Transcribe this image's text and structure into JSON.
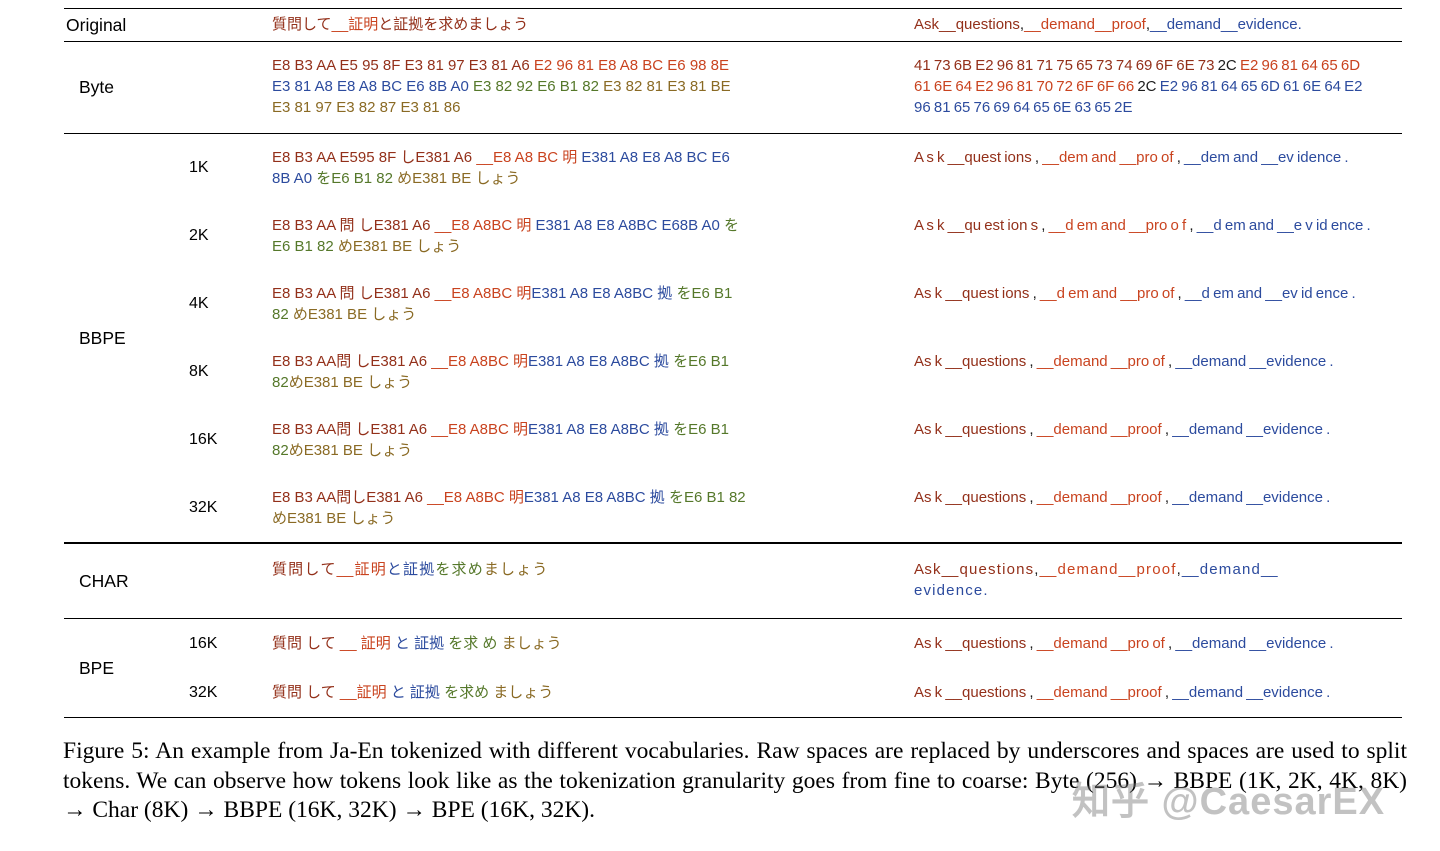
{
  "palette": {
    "dr": "#93301a",
    "rd": "#c9431f",
    "bl": "#2c4b9e",
    "gr": "#55782a",
    "ol": "#8a6a24",
    "bk": "#1c1c1c"
  },
  "sections": [
    {
      "name": "original",
      "group": "Original",
      "rows": [
        {
          "size": "",
          "ja": [
            [
              {
                "t": "質問して",
                "c": "dr"
              },
              {
                "t": "__証明",
                "c": "rd"
              },
              {
                "t": "と証拠を求めましょう",
                "c": "dr"
              }
            ]
          ],
          "en": [
            [
              {
                "t": "Ask__questions",
                "c": "dr"
              },
              {
                "t": ",",
                "c": "bk"
              },
              {
                "t": "__demand__proof",
                "c": "rd"
              },
              {
                "t": ",",
                "c": "bk"
              },
              {
                "t": "__demand__evidence.",
                "c": "bl"
              }
            ]
          ]
        }
      ]
    },
    {
      "name": "byte",
      "group": "Byte",
      "rows": [
        {
          "size": "",
          "ja": [
            [
              {
                "t": "E8 B3 AA E5 95 8F E3 81 97 E3 81 A6 ",
                "c": "dr"
              },
              {
                "t": "E2 96 81 E8 A8 BC E6 98 8E",
                "c": "rd"
              }
            ],
            [
              {
                "t": "E3 81 A8 E8 A8 BC E6 8B A0 ",
                "c": "bl"
              },
              {
                "t": "E3 82 92 E6 B1 82 ",
                "c": "gr"
              },
              {
                "t": "E3 82 81 E3 81 BE",
                "c": "ol"
              }
            ],
            [
              {
                "t": "E3 81 97 E3 82 87 E3 81 86",
                "c": "ol"
              }
            ]
          ],
          "en": [
            [
              {
                "t": "41 73 6B E2 96 81 71 75 65 73 74 69 6F 6E 73 ",
                "c": "dr"
              },
              {
                "t": "2C ",
                "c": "bk"
              },
              {
                "t": "E2 96 81 64 65 6D",
                "c": "rd"
              }
            ],
            [
              {
                "t": "61 6E 64 E2 96 81 70 72 6F 6F 66 ",
                "c": "rd"
              },
              {
                "t": "2C ",
                "c": "bk"
              },
              {
                "t": "E2 96 81 64 65 6D 61 6E 64 E2",
                "c": "bl"
              }
            ],
            [
              {
                "t": "96 81 65 76 69 64 65 6E 63 65 2E",
                "c": "bl"
              }
            ]
          ]
        }
      ]
    },
    {
      "name": "bbpe",
      "group": "BBPE",
      "rows": [
        {
          "size": "1K",
          "ja": [
            [
              {
                "t": "E8 B3 AA E595 8F しE381 A6 ",
                "c": "dr"
              },
              {
                "t": "__E8 A8 BC 明 ",
                "c": "rd"
              },
              {
                "t": "E381 A8 E8 A8 BC E6",
                "c": "bl"
              }
            ],
            [
              {
                "t": "8B A0 ",
                "c": "bl"
              },
              {
                "t": "をE6 B1 82 ",
                "c": "gr"
              },
              {
                "t": "めE381 BE しょう",
                "c": "ol"
              }
            ]
          ],
          "en": [
            [
              {
                "t": "A s k __quest ions ",
                "c": "dr"
              },
              {
                "t": ", ",
                "c": "bk"
              },
              {
                "t": "__dem and __pro of ",
                "c": "rd"
              },
              {
                "t": ", ",
                "c": "bk"
              },
              {
                "t": "__dem and __ev idence .",
                "c": "bl"
              }
            ]
          ]
        },
        {
          "size": "2K",
          "ja": [
            [
              {
                "t": "E8 B3 AA 問 しE381 A6 ",
                "c": "dr"
              },
              {
                "t": "__E8 A8BC 明 ",
                "c": "rd"
              },
              {
                "t": "E381 A8 E8 A8BC E68B A0 ",
                "c": "bl"
              },
              {
                "t": "を",
                "c": "gr"
              }
            ],
            [
              {
                "t": "E6 B1 82 ",
                "c": "gr"
              },
              {
                "t": "めE381 BE しょう",
                "c": "ol"
              }
            ]
          ],
          "en": [
            [
              {
                "t": "A s k __qu est ion s ",
                "c": "dr"
              },
              {
                "t": ", ",
                "c": "bk"
              },
              {
                "t": "__d em and __pro o f ",
                "c": "rd"
              },
              {
                "t": ", ",
                "c": "bk"
              },
              {
                "t": "__d em and __e v id ence .",
                "c": "bl"
              }
            ]
          ]
        },
        {
          "size": "4K",
          "ja": [
            [
              {
                "t": "E8 B3 AA 問 しE381 A6 ",
                "c": "dr"
              },
              {
                "t": "__E8 A8BC 明",
                "c": "rd"
              },
              {
                "t": "E381 A8 E8 A8BC 拠 ",
                "c": "bl"
              },
              {
                "t": "をE6 B1",
                "c": "gr"
              }
            ],
            [
              {
                "t": "82 ",
                "c": "gr"
              },
              {
                "t": "めE381 BE しょう",
                "c": "ol"
              }
            ]
          ],
          "en": [
            [
              {
                "t": "As k __quest ions ",
                "c": "dr"
              },
              {
                "t": ", ",
                "c": "bk"
              },
              {
                "t": "__d em and __pro of ",
                "c": "rd"
              },
              {
                "t": ", ",
                "c": "bk"
              },
              {
                "t": "__d em and __ev id ence .",
                "c": "bl"
              }
            ]
          ]
        },
        {
          "size": "8K",
          "ja": [
            [
              {
                "t": "E8 B3 AA問 しE381 A6 ",
                "c": "dr"
              },
              {
                "t": "__E8 A8BC 明",
                "c": "rd"
              },
              {
                "t": "E381 A8 E8 A8BC 拠 ",
                "c": "bl"
              },
              {
                "t": "をE6 B1",
                "c": "gr"
              }
            ],
            [
              {
                "t": "82",
                "c": "gr"
              },
              {
                "t": "めE381 BE しょう",
                "c": "ol"
              }
            ]
          ],
          "en": [
            [
              {
                "t": "As k __questions ",
                "c": "dr"
              },
              {
                "t": ", ",
                "c": "bk"
              },
              {
                "t": "__demand __pro of ",
                "c": "rd"
              },
              {
                "t": ", ",
                "c": "bk"
              },
              {
                "t": "__demand __evidence .",
                "c": "bl"
              }
            ]
          ]
        },
        {
          "size": "16K",
          "ja": [
            [
              {
                "t": "E8 B3 AA問 しE381 A6 ",
                "c": "dr"
              },
              {
                "t": "__E8 A8BC 明",
                "c": "rd"
              },
              {
                "t": "E381 A8 E8 A8BC 拠 ",
                "c": "bl"
              },
              {
                "t": "をE6 B1",
                "c": "gr"
              }
            ],
            [
              {
                "t": "82",
                "c": "gr"
              },
              {
                "t": "めE381 BE しょう",
                "c": "ol"
              }
            ]
          ],
          "en": [
            [
              {
                "t": "As k __questions ",
                "c": "dr"
              },
              {
                "t": ", ",
                "c": "bk"
              },
              {
                "t": "__demand __proof ",
                "c": "rd"
              },
              {
                "t": ", ",
                "c": "bk"
              },
              {
                "t": "__demand __evidence .",
                "c": "bl"
              }
            ]
          ]
        },
        {
          "size": "32K",
          "ja": [
            [
              {
                "t": "E8 B3 AA問しE381 A6 ",
                "c": "dr"
              },
              {
                "t": "__E8 A8BC 明",
                "c": "rd"
              },
              {
                "t": "E381 A8 E8 A8BC 拠 ",
                "c": "bl"
              },
              {
                "t": "をE6 B1 82",
                "c": "gr"
              }
            ],
            [
              {
                "t": "めE381 BE しょう",
                "c": "ol"
              }
            ]
          ],
          "en": [
            [
              {
                "t": "As k __questions ",
                "c": "dr"
              },
              {
                "t": ", ",
                "c": "bk"
              },
              {
                "t": "__demand __proof ",
                "c": "rd"
              },
              {
                "t": ", ",
                "c": "bk"
              },
              {
                "t": "__demand __evidence .",
                "c": "bl"
              }
            ]
          ]
        }
      ]
    },
    {
      "name": "char",
      "group": "CHAR",
      "rows": [
        {
          "size": "",
          "ja": [
            [
              {
                "t": "質 問 し て ",
                "c": "dr"
              },
              {
                "t": "__ 証 明 ",
                "c": "rd"
              },
              {
                "t": "と 証 拠 ",
                "c": "bl"
              },
              {
                "t": "を 求 め ",
                "c": "gr"
              },
              {
                "t": "ま し ょ う",
                "c": "ol"
              }
            ]
          ],
          "en": [
            [
              {
                "t": "A s k __ q u e s t i o n s ",
                "c": "dr"
              },
              {
                "t": ", ",
                "c": "bk"
              },
              {
                "t": "__ d e m a n d __ p r o o f ",
                "c": "rd"
              },
              {
                "t": ", ",
                "c": "bk"
              },
              {
                "t": "__ d e m a n d __",
                "c": "bl"
              }
            ],
            [
              {
                "t": "e v i d e n c e .",
                "c": "bl"
              }
            ]
          ]
        }
      ]
    },
    {
      "name": "bpe",
      "group": "BPE",
      "rows": [
        {
          "size": "16K",
          "ja": [
            [
              {
                "t": "質問 して ",
                "c": "dr"
              },
              {
                "t": "__ 証明 ",
                "c": "rd"
              },
              {
                "t": "と 証拠 ",
                "c": "bl"
              },
              {
                "t": "を求 め ",
                "c": "gr"
              },
              {
                "t": "ましょう",
                "c": "ol"
              }
            ]
          ],
          "en": [
            [
              {
                "t": "As k __questions ",
                "c": "dr"
              },
              {
                "t": ", ",
                "c": "bk"
              },
              {
                "t": "__demand __pro of ",
                "c": "rd"
              },
              {
                "t": ", ",
                "c": "bk"
              },
              {
                "t": "__demand __evidence .",
                "c": "bl"
              }
            ]
          ]
        },
        {
          "size": "32K",
          "ja": [
            [
              {
                "t": "質問 して ",
                "c": "dr"
              },
              {
                "t": "__証明 ",
                "c": "rd"
              },
              {
                "t": "と 証拠 ",
                "c": "bl"
              },
              {
                "t": "を求め ",
                "c": "gr"
              },
              {
                "t": "ましょう",
                "c": "ol"
              }
            ]
          ],
          "en": [
            [
              {
                "t": "As k __questions ",
                "c": "dr"
              },
              {
                "t": ", ",
                "c": "bk"
              },
              {
                "t": "__demand __proof ",
                "c": "rd"
              },
              {
                "t": ", ",
                "c": "bk"
              },
              {
                "t": "__demand __evidence .",
                "c": "bl"
              }
            ]
          ]
        }
      ]
    }
  ],
  "caption": "Figure 5: An example from Ja-En tokenized with different vocabularies. Raw spaces are replaced by underscores and spaces are used to split tokens. We can observe how tokens look like as the tokenization granularity goes from fine to coarse: Byte (256) → BBPE (1K, 2K, 4K, 8K) → Char (8K) → BBPE (16K, 32K) → BPE (16K, 32K).",
  "watermark": "知乎 @CaesarEX"
}
